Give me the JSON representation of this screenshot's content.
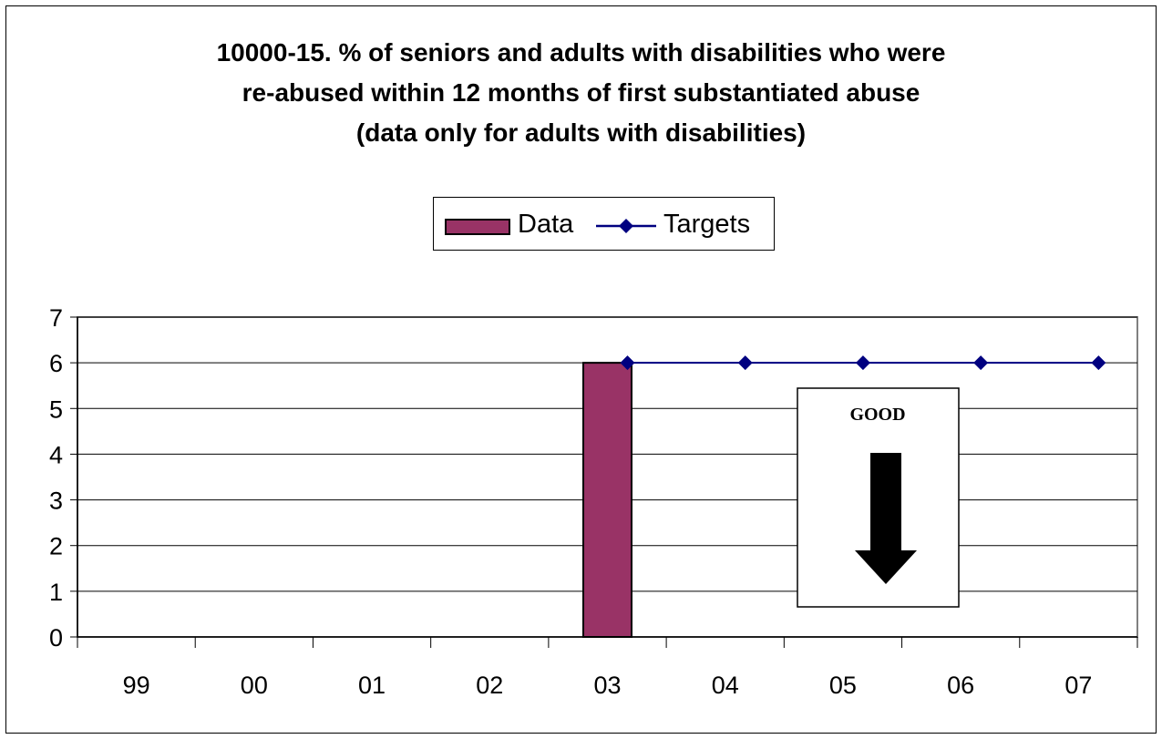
{
  "chart_data": {
    "type": "bar",
    "title_lines": [
      "10000-15. % of seniors and adults with disabilities who were",
      "re-abused within 12 months of first substantiated abuse",
      "(data only for adults with disabilities)"
    ],
    "categories": [
      "99",
      "00",
      "01",
      "02",
      "03",
      "04",
      "05",
      "06",
      "07"
    ],
    "series": [
      {
        "name": "Data",
        "kind": "bar",
        "color": "#993366",
        "values": [
          null,
          null,
          null,
          null,
          6,
          null,
          null,
          null,
          null
        ]
      },
      {
        "name": "Targets",
        "kind": "line",
        "color": "#000080",
        "marker": "diamond",
        "values": [
          null,
          null,
          null,
          null,
          6,
          6,
          6,
          6,
          6
        ]
      }
    ],
    "ylim": [
      0,
      7
    ],
    "yticks": [
      0,
      1,
      2,
      3,
      4,
      5,
      6,
      7
    ],
    "grid": true,
    "legend_position": "top",
    "annotation": {
      "text": "GOOD",
      "arrow": "down"
    },
    "xlabel": "",
    "ylabel": ""
  }
}
